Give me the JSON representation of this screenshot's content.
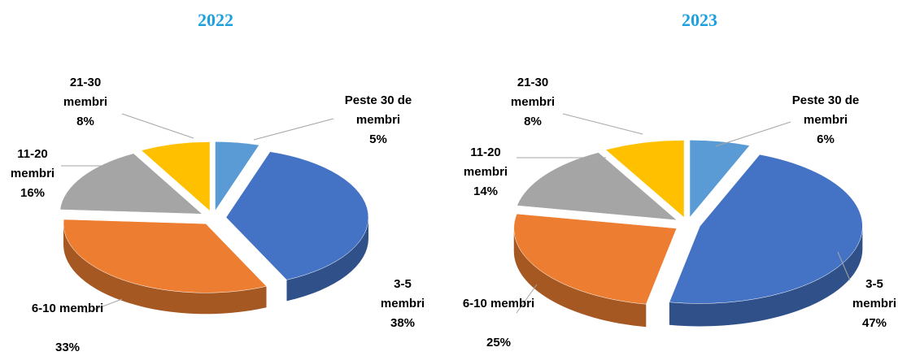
{
  "chart_data": [
    {
      "type": "pie",
      "title": "2022",
      "categories": [
        "Peste 30 de membri",
        "3-5 membri",
        "6-10 membri",
        "11-20 membri",
        "21-30 membri"
      ],
      "values": [
        5,
        38,
        33,
        16,
        8
      ],
      "value_labels": [
        "5%",
        "38%",
        "33%",
        "16%",
        "8%"
      ],
      "colors": [
        "#5b9bd5",
        "#4472c4",
        "#ed7d31",
        "#a5a5a5",
        "#ffc000"
      ]
    },
    {
      "type": "pie",
      "title": "2023",
      "categories": [
        "Peste 30 de membri",
        "3-5 membri",
        "6-10 membri",
        "11-20 membri",
        "21-30 membri"
      ],
      "values": [
        6,
        47,
        25,
        14,
        8
      ],
      "value_labels": [
        "6%",
        "47%",
        "25%",
        "14%",
        "8%"
      ],
      "colors": [
        "#5b9bd5",
        "#4472c4",
        "#ed7d31",
        "#a5a5a5",
        "#ffc000"
      ]
    }
  ]
}
